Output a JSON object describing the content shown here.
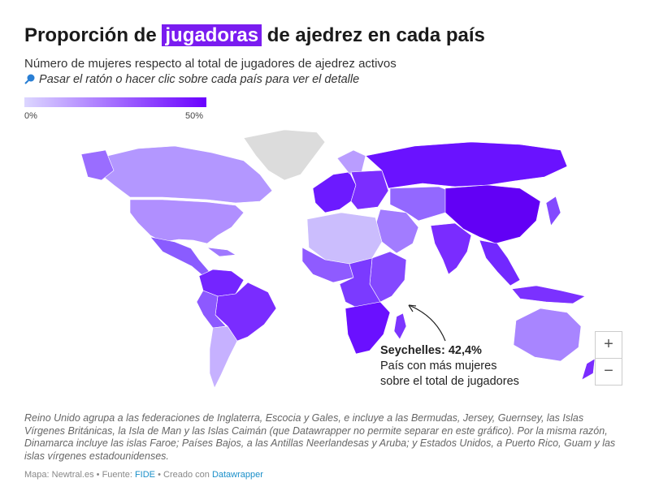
{
  "header": {
    "title_before": "Proporción de",
    "title_highlight": "jugadoras",
    "title_after": "de ajedrez en cada país",
    "subtitle": "Número de mujeres respecto al total de jugadores de ajedrez activos",
    "hint_icon": "pointer-icon",
    "hint": "Pasar el ratón o hacer clic sobre cada país para ver el detalle"
  },
  "legend": {
    "min_label": "0%",
    "max_label": "50%",
    "color_low": "#dcd6ff",
    "color_high": "#6a00ff"
  },
  "map": {
    "no_data_color": "#dcdcdc",
    "annotation": {
      "title": "Seychelles: 42,4%",
      "line1": "País con más mujeres",
      "line2": "sobre el total de jugadores"
    },
    "zoom_in_label": "+",
    "zoom_out_label": "−"
  },
  "notes": "Reino Unido agrupa a las federaciones de Inglaterra, Escocia y Gales, e incluye a las Bermudas, Jersey, Guernsey, las Islas Vírgenes Británicas, la Isla de Man y las Islas Caimán (que Datawrapper no permite separar en este gráfico). Por la misma razón, Dinamarca incluye las islas Faroe; Países Bajos, a las Antillas Neerlandesas y Aruba; y Estados Unidos, a Puerto Rico, Guam y las islas vírgenes estadounidenses.",
  "footer": {
    "map_credit": "Mapa: Newtral.es",
    "source_label": "Fuente:",
    "source_link": "FIDE",
    "created_label": "Creado con",
    "created_link": "Datawrapper"
  }
}
